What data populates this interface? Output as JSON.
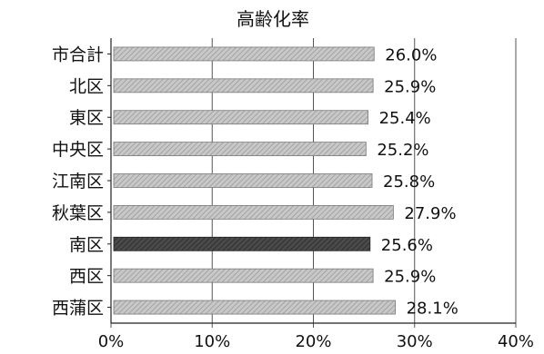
{
  "chart_data": {
    "type": "bar",
    "orientation": "horizontal",
    "title": "高齢化率",
    "categories": [
      "市合計",
      "北区",
      "東区",
      "中央区",
      "江南区",
      "秋葉区",
      "南区",
      "西区",
      "西蒲区"
    ],
    "values": [
      26.0,
      25.9,
      25.4,
      25.2,
      25.8,
      27.9,
      25.6,
      25.9,
      28.1
    ],
    "data_labels": [
      "26.0%",
      "25.9%",
      "25.4%",
      "25.2%",
      "25.8%",
      "27.9%",
      "25.6%",
      "25.9%",
      "28.1%"
    ],
    "highlighted_category": "南区",
    "xlim": [
      0,
      40
    ],
    "x_ticks": [
      0,
      10,
      20,
      30,
      40
    ],
    "x_tick_labels": [
      "0%",
      "10%",
      "20%",
      "30%",
      "40%"
    ],
    "grid": "vertical",
    "legend": "none",
    "xlabel": "",
    "ylabel": ""
  },
  "colors": {
    "bar_fill": "#c8c8c8",
    "bar_hatch": "#9a9a9a",
    "bar_outline": "#7a7a7a",
    "highlight_fill": "#4a4a4a",
    "highlight_hatch": "#2a2a2a",
    "grid": "#555555",
    "text": "#111111"
  }
}
